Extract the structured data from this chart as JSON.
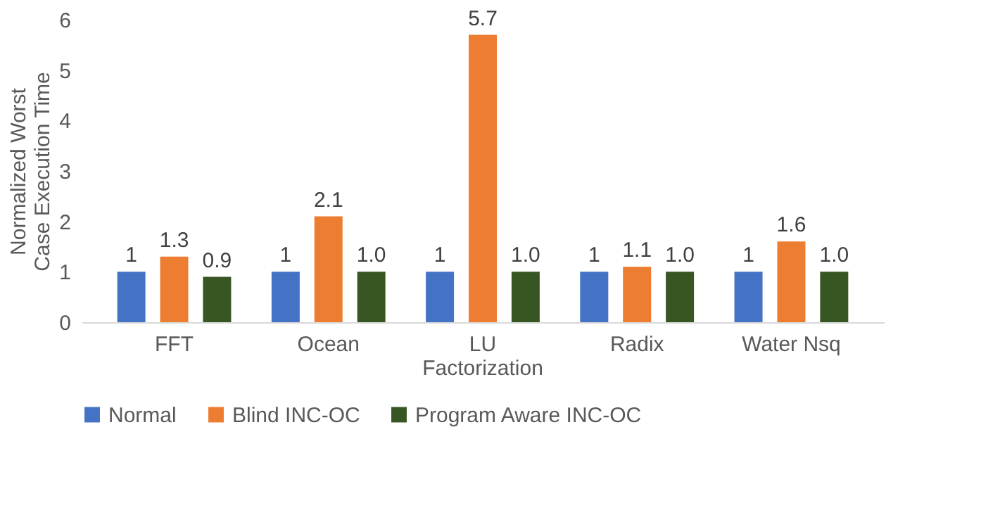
{
  "chart_data": {
    "type": "bar",
    "categories": [
      "FFT",
      "Ocean",
      "LU Factorization",
      "Radix",
      "Water Nsq"
    ],
    "ylabel": "Normalized Worst Case Execution Time",
    "ylim": [
      0,
      6
    ],
    "yticks": [
      0,
      1,
      2,
      3,
      4,
      5,
      6
    ],
    "grid": false,
    "legend": "bottom",
    "series": [
      {
        "name": "Normal",
        "color": "#4472c4",
        "values": [
          1,
          1,
          1,
          1,
          1
        ],
        "value_labels": [
          "1",
          "1",
          "1",
          "1",
          "1"
        ]
      },
      {
        "name": "Blind INC-OC",
        "color": "#ed7d31",
        "values": [
          1.3,
          2.1,
          5.7,
          1.1,
          1.6
        ],
        "value_labels": [
          "1.3",
          "2.1",
          "5.7",
          "1.1",
          "1.6"
        ]
      },
      {
        "name": "Program Aware INC-OC",
        "color": "#375623",
        "values": [
          0.9,
          1.0,
          1.0,
          1.0,
          1.0
        ],
        "value_labels": [
          "0.9",
          "1.0",
          "1.0",
          "1.0",
          "1.0"
        ]
      }
    ]
  }
}
